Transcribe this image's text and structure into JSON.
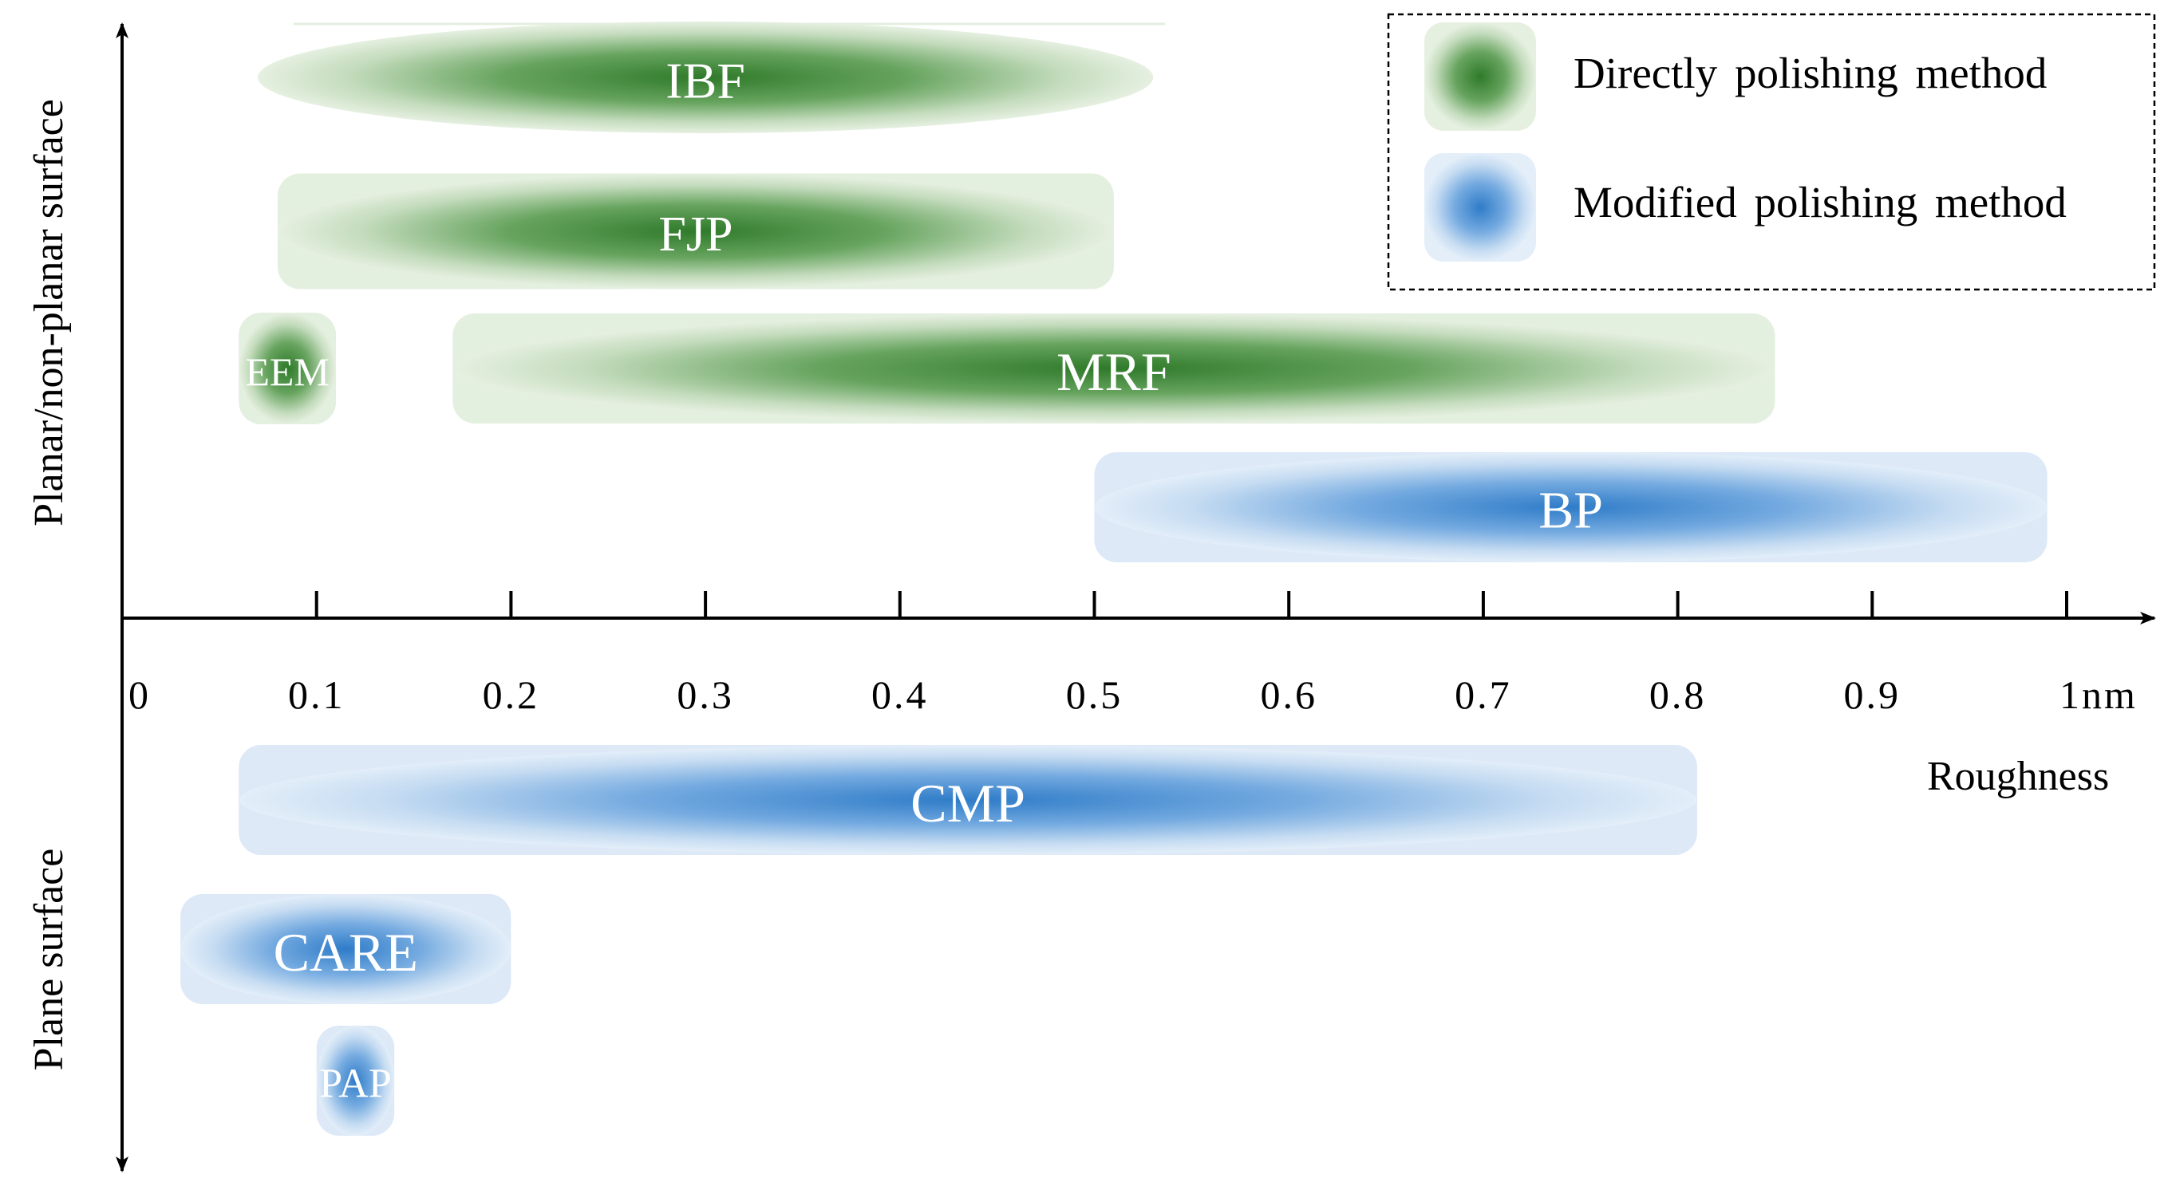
{
  "chart_data": {
    "type": "bar",
    "orientation": "horizontal-range",
    "x_unit": "nm",
    "xlabel": "Roughness",
    "xlim": [
      0,
      1
    ],
    "x_ticks": [
      {
        "value": 0,
        "label": "0"
      },
      {
        "value": 0.1,
        "label": "0.1"
      },
      {
        "value": 0.2,
        "label": "0.2"
      },
      {
        "value": 0.3,
        "label": "0.3"
      },
      {
        "value": 0.4,
        "label": "0.4"
      },
      {
        "value": 0.5,
        "label": "0.5"
      },
      {
        "value": 0.6,
        "label": "0.6"
      },
      {
        "value": 0.7,
        "label": "0.7"
      },
      {
        "value": 0.8,
        "label": "0.8"
      },
      {
        "value": 0.9,
        "label": "0.9"
      },
      {
        "value": 1.0,
        "label": "1nm"
      }
    ],
    "y_groups": [
      {
        "label": "Planar/non-planar surface",
        "side": "above axis"
      },
      {
        "label": "Plane surface",
        "side": "below axis"
      }
    ],
    "legend": {
      "placement": "top-right",
      "border": "dashed",
      "entries": [
        {
          "label": "Directly polishing method",
          "category": "direct",
          "color": "#3f8a37"
        },
        {
          "label": "Modified polishing method",
          "category": "modified",
          "color": "#3b84d0"
        }
      ]
    },
    "series": [
      {
        "label": "IBF",
        "group": "Planar/non-planar surface",
        "category": "direct",
        "start": 0.08,
        "end": 0.52
      },
      {
        "label": "FJP",
        "group": "Planar/non-planar surface",
        "category": "direct",
        "start": 0.08,
        "end": 0.51
      },
      {
        "label": "EEM",
        "group": "Planar/non-planar surface",
        "category": "direct",
        "start": 0.06,
        "end": 0.11
      },
      {
        "label": "MRF",
        "group": "Planar/non-planar surface",
        "category": "direct",
        "start": 0.17,
        "end": 0.85
      },
      {
        "label": "BP",
        "group": "Planar/non-planar surface",
        "category": "modified",
        "start": 0.5,
        "end": 0.99
      },
      {
        "label": "CMP",
        "group": "Plane surface",
        "category": "modified",
        "start": 0.06,
        "end": 0.81
      },
      {
        "label": "CARE",
        "group": "Plane surface",
        "category": "modified",
        "start": 0.03,
        "end": 0.2
      },
      {
        "label": "PAP",
        "group": "Plane surface",
        "category": "modified",
        "start": 0.1,
        "end": 0.14
      }
    ]
  }
}
